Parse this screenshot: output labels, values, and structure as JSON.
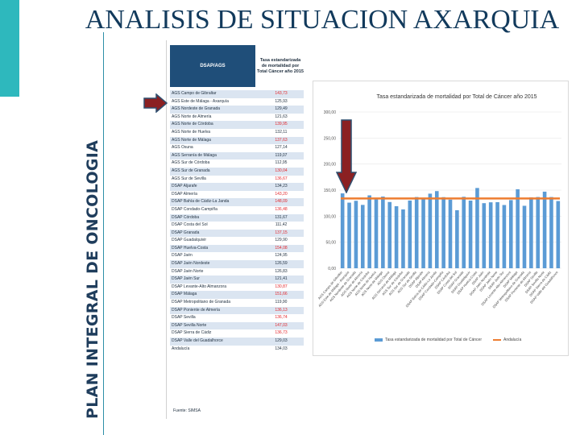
{
  "slide": {
    "title": "ANALISIS DE SITUACION AXARQUIA",
    "side_title": "PLAN INTEGRAL DE ONCOLOGIA"
  },
  "table": {
    "header_name": "DSAP/AGS",
    "header_value": "Tasa estandarizada de mortalidad por Total Cáncer año 2015",
    "source": "Fuente: SIMSA",
    "rows": [
      {
        "name": "AGS Campo de Gibraltar",
        "value": "143,73",
        "high": true
      },
      {
        "name": "AGS Este de Málaga - Axarquía",
        "value": "125,93",
        "high": false
      },
      {
        "name": "AGS Nordeste de Granada",
        "value": "129,49",
        "high": false
      },
      {
        "name": "AGS Norte de Almería",
        "value": "121,63",
        "high": false
      },
      {
        "name": "AGS Norte de Córdoba",
        "value": "139,95",
        "high": true
      },
      {
        "name": "AGS Norte de Huelva",
        "value": "132,11",
        "high": false
      },
      {
        "name": "AGS Norte de Málaga",
        "value": "137,63",
        "high": true
      },
      {
        "name": "AGS Osuna",
        "value": "127,14",
        "high": false
      },
      {
        "name": "AGS Serranía de Málaga",
        "value": "119,07",
        "high": false
      },
      {
        "name": "AGS Sur de Córdoba",
        "value": "112,95",
        "high": false
      },
      {
        "name": "AGS Sur de Granada",
        "value": "130,04",
        "high": true
      },
      {
        "name": "AGS Sur de Sevilla",
        "value": "136,67",
        "high": true
      },
      {
        "name": "DSAP Aljarafe",
        "value": "134,23",
        "high": false
      },
      {
        "name": "DSAP Almería",
        "value": "143,20",
        "high": true
      },
      {
        "name": "DSAP Bahía de Cádiz-La Janda",
        "value": "148,09",
        "high": true
      },
      {
        "name": "DSAP Condado-Campiña",
        "value": "136,48",
        "high": true
      },
      {
        "name": "DSAP Córdoba",
        "value": "131,67",
        "high": false
      },
      {
        "name": "DSAP Costa del Sol",
        "value": "111,42",
        "high": false
      },
      {
        "name": "DSAP Granada",
        "value": "137,15",
        "high": true
      },
      {
        "name": "DSAP Guadalquivir",
        "value": "129,90",
        "high": false
      },
      {
        "name": "DSAP Huelva-Costa",
        "value": "154,08",
        "high": true
      },
      {
        "name": "DSAP Jaén",
        "value": "124,95",
        "high": false
      },
      {
        "name": "DSAP Jaén Nordeste",
        "value": "126,59",
        "high": false
      },
      {
        "name": "DSAP Jaén Norte",
        "value": "126,83",
        "high": false
      },
      {
        "name": "DSAP Jaén Sur",
        "value": "121,41",
        "high": false
      },
      {
        "name": "DSAP Levante-Alto Almanzora",
        "value": "130,87",
        "high": true
      },
      {
        "name": "DSAP Málaga",
        "value": "151,66",
        "high": true
      },
      {
        "name": "DSAP Metropolitano de Granada",
        "value": "119,90",
        "high": false
      },
      {
        "name": "DSAP Poniente de Almería",
        "value": "136,13",
        "high": true
      },
      {
        "name": "DSAP Sevilla",
        "value": "136,74",
        "high": true
      },
      {
        "name": "DSAP Sevilla Norte",
        "value": "147,03",
        "high": true
      },
      {
        "name": "DSAP Sierra de Cádiz",
        "value": "136,73",
        "high": true
      },
      {
        "name": "DSAP Valle del Guadalhorce",
        "value": "129,03",
        "high": false
      },
      {
        "name": "Andalucía",
        "value": "134,03",
        "high": false
      }
    ]
  },
  "chart_data": {
    "type": "bar",
    "title": "Tasa estandarizada de mortalidad por Total de Cáncer año 2015",
    "ylim": [
      0,
      300
    ],
    "yticks": [
      "0,00",
      "50,00",
      "100,00",
      "150,00",
      "200,00",
      "250,00",
      "300,00"
    ],
    "categories": [
      "AGS Campo de Gibraltar",
      "AGS Este de Málaga - Axarquía",
      "AGS Nordeste de Granada",
      "AGS Norte de Almería",
      "AGS Norte de Córdoba",
      "AGS Norte de Huelva",
      "AGS Norte de Málaga",
      "AGS Osuna",
      "AGS Serranía de Málaga",
      "AGS Sur de Córdoba",
      "AGS Sur de Granada",
      "AGS Sur de Sevilla",
      "DSAP Aljarafe",
      "DSAP Almería",
      "DSAP Bahía de Cádiz-La Janda",
      "DSAP Condado-Campiña",
      "DSAP Córdoba",
      "DSAP Costa del Sol",
      "DSAP Granada",
      "DSAP Guadalquivir",
      "DSAP Huelva-Costa",
      "DSAP Jaén",
      "DSAP Jaén Nordeste",
      "DSAP Jaén Norte",
      "DSAP Jaén Sur",
      "DSAP Levante-Alto Almanzora",
      "DSAP Málaga",
      "DSAP Metropolitano de Granada",
      "DSAP Poniente de Almería",
      "DSAP Sevilla",
      "DSAP Sevilla Norte",
      "DSAP Sierra de Cádiz",
      "DSAP Valle del Guadalhorce"
    ],
    "series": [
      {
        "name": "Tasa estandarizada de mortalidad por Total de Cáncer",
        "type": "bar",
        "color": "#5b9bd5",
        "values": [
          143.73,
          125.93,
          129.49,
          121.63,
          139.95,
          132.11,
          137.63,
          127.14,
          119.07,
          112.95,
          130.04,
          136.67,
          134.23,
          143.2,
          148.09,
          136.48,
          131.67,
          111.42,
          137.15,
          129.9,
          154.08,
          124.95,
          126.59,
          126.83,
          121.41,
          130.87,
          151.66,
          119.9,
          136.13,
          136.74,
          147.03,
          136.73,
          129.03
        ]
      },
      {
        "name": "Andalucía",
        "type": "line",
        "color": "#ed7d31",
        "value": 134.03
      }
    ]
  },
  "colors": {
    "accent": "#2eb8bd",
    "title": "#123a5c",
    "table_header": "#1f4e79",
    "highlight_text": "#e3262b",
    "arrow_fill": "#8b2022",
    "arrow_stroke": "#2f4f6f"
  }
}
